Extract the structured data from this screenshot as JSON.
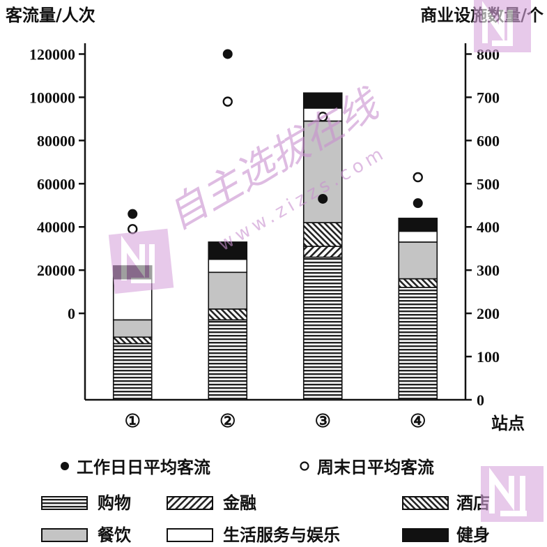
{
  "chart_data": {
    "type": "bar",
    "stacked": true,
    "left_axis_label": "客流量/人次",
    "right_axis_label": "商业设施数量/个",
    "x_title": "站点",
    "categories": [
      "①",
      "②",
      "③",
      "④"
    ],
    "left_ticks": [
      "0",
      "20000",
      "40000",
      "60000",
      "80000",
      "100000",
      "120000"
    ],
    "right_ticks": [
      "0",
      "100",
      "200",
      "300",
      "400",
      "500",
      "600",
      "700",
      "800"
    ],
    "left_range": [
      -40000,
      125000
    ],
    "right_range": [
      0,
      825
    ],
    "bar_series": [
      {
        "name": "购物",
        "pattern": "hstripe",
        "values": [
          130,
          185,
          330,
          260
        ]
      },
      {
        "name": "金融",
        "pattern": "fwdhatch",
        "values": [
          0,
          0,
          25,
          0
        ]
      },
      {
        "name": "酒店",
        "pattern": "backhatch",
        "values": [
          15,
          25,
          55,
          20
        ]
      },
      {
        "name": "餐饮",
        "pattern": "gray",
        "values": [
          40,
          85,
          235,
          85
        ]
      },
      {
        "name": "生活服务与娱乐",
        "pattern": "white",
        "values": [
          95,
          30,
          30,
          25
        ]
      },
      {
        "name": "健身",
        "pattern": "black",
        "values": [
          30,
          40,
          35,
          30
        ]
      }
    ],
    "point_series": [
      {
        "name": "工作日日平均客流",
        "marker": "filled",
        "values": [
          46000,
          120000,
          53000,
          51000
        ]
      },
      {
        "name": "周末日平均客流",
        "marker": "open",
        "values": [
          39000,
          98000,
          91000,
          63000
        ]
      }
    ],
    "legend_order": [
      "工作日日平均客流",
      "周末日平均客流",
      "购物",
      "金融",
      "酒店",
      "餐饮",
      "生活服务与娱乐",
      "健身"
    ],
    "legend_placement": "bottom",
    "grid": false
  },
  "watermark": {
    "text_cn": "自主选拔在线",
    "text_url": "www.zizzs.com",
    "logo_letter": "N",
    "color": "#c490c8"
  }
}
